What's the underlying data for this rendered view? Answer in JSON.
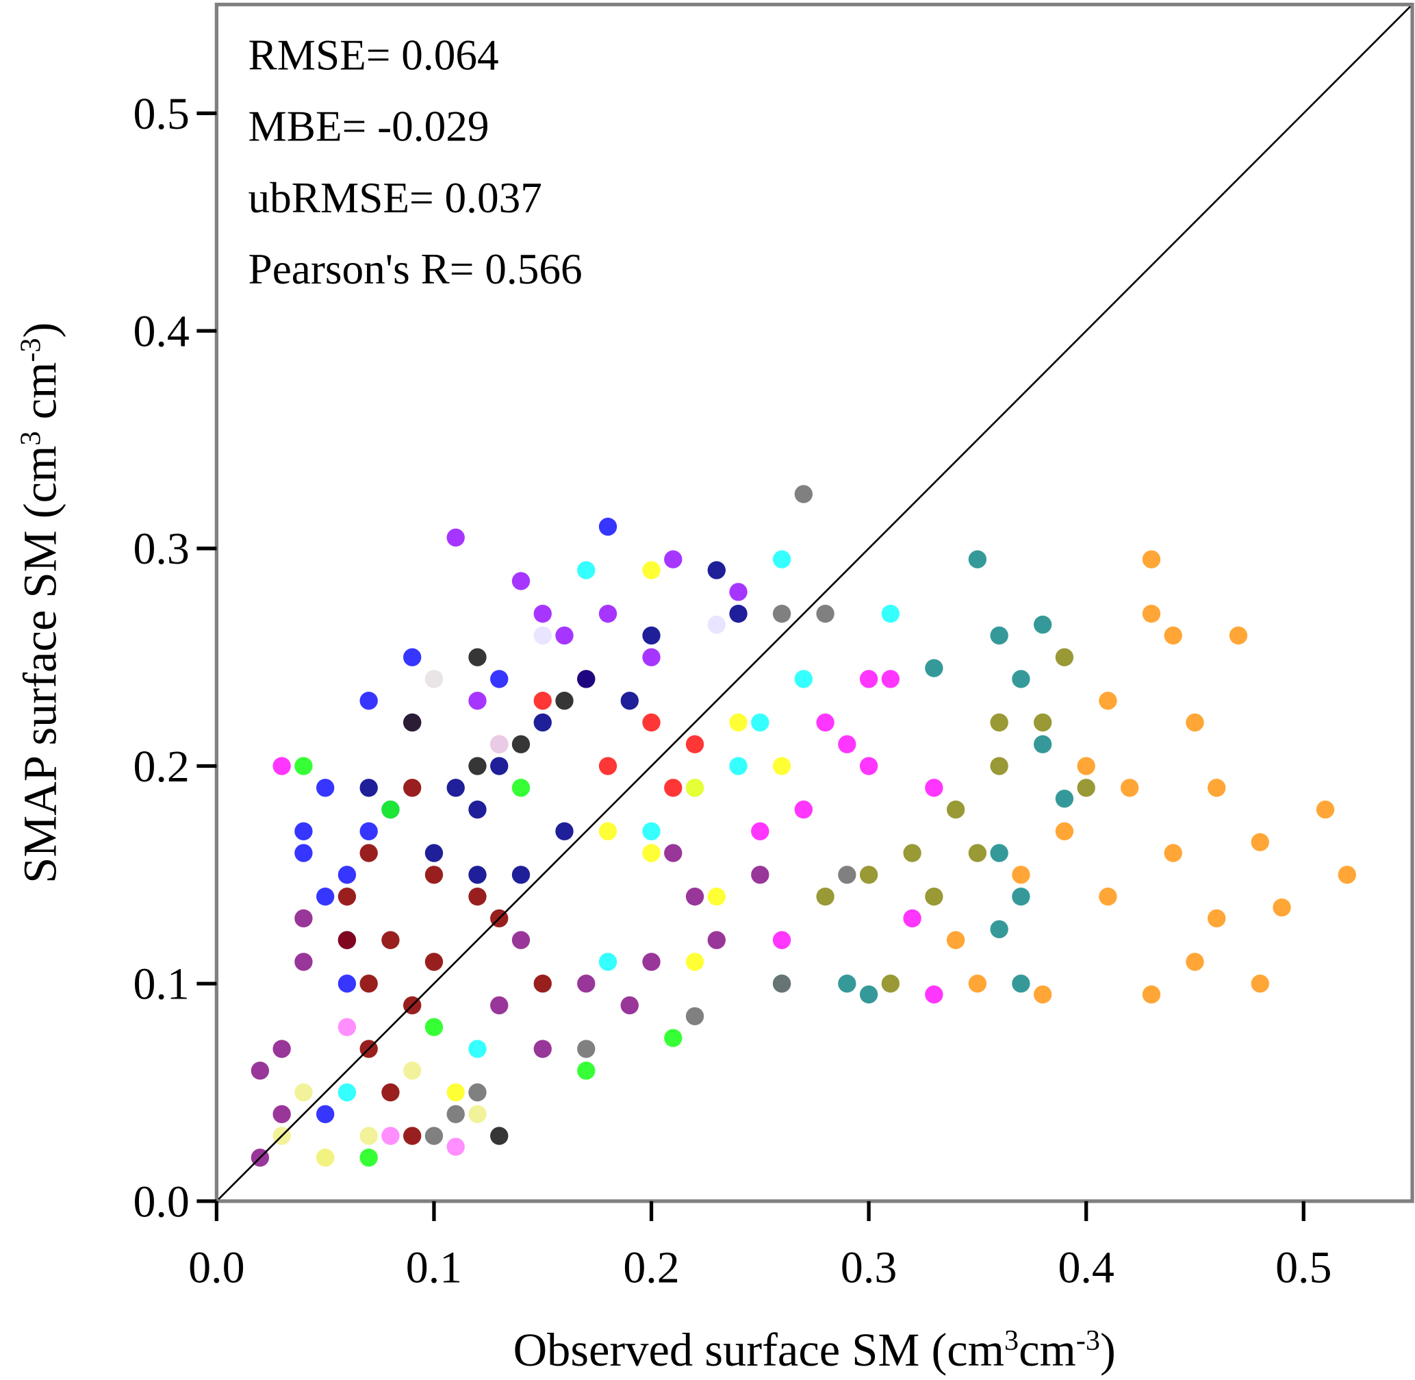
{
  "chart_data": {
    "type": "scatter",
    "annotations": [
      "RMSE= 0.064",
      "MBE= -0.029",
      "ubRMSE= 0.037",
      "Pearson's R= 0.566"
    ],
    "xlabel": [
      "Observed surface SM (cm",
      "3",
      "cm",
      "-3",
      ")"
    ],
    "ylabel": [
      "SMAP surface SM (cm",
      "3",
      " cm",
      "-3",
      ")"
    ],
    "xlim": [
      0,
      0.55
    ],
    "ylim": [
      0,
      0.55
    ],
    "xticks": [
      {
        "value": 0,
        "label": "0.0"
      },
      0.1,
      0.2,
      0.3,
      0.4,
      0.5
    ],
    "yticks": [
      {
        "value": 0,
        "label": "0.0"
      },
      0.1,
      0.2,
      0.3,
      0.4,
      0.5
    ],
    "identity_line": true,
    "series": [
      {
        "color": "#ff9a1a",
        "x": [
          0.43,
          0.43,
          0.44,
          0.47,
          0.41,
          0.45,
          0.4,
          0.42,
          0.46,
          0.51,
          0.39,
          0.44,
          0.48,
          0.52,
          0.37,
          0.41,
          0.46,
          0.49,
          0.35,
          0.38,
          0.43,
          0.48,
          0.34,
          0.45
        ],
        "y": [
          0.295,
          0.27,
          0.26,
          0.26,
          0.23,
          0.22,
          0.2,
          0.19,
          0.19,
          0.18,
          0.17,
          0.16,
          0.165,
          0.15,
          0.15,
          0.14,
          0.13,
          0.135,
          0.1,
          0.095,
          0.095,
          0.1,
          0.12,
          0.11
        ]
      },
      {
        "color": "#1a8b8b",
        "x": [
          0.35,
          0.38,
          0.36,
          0.37,
          0.38,
          0.39,
          0.36,
          0.37,
          0.36,
          0.37,
          0.3,
          0.29,
          0.33,
          0.26
        ],
        "y": [
          0.295,
          0.265,
          0.26,
          0.24,
          0.21,
          0.185,
          0.16,
          0.14,
          0.125,
          0.1,
          0.095,
          0.1,
          0.245,
          0.1
        ]
      },
      {
        "color": "#8b8b1a",
        "x": [
          0.39,
          0.38,
          0.36,
          0.34,
          0.32,
          0.35,
          0.3,
          0.28,
          0.33,
          0.31,
          0.36,
          0.4
        ],
        "y": [
          0.25,
          0.22,
          0.2,
          0.18,
          0.16,
          0.16,
          0.15,
          0.14,
          0.14,
          0.1,
          0.22,
          0.19
        ]
      },
      {
        "color": "#ff1aff",
        "x": [
          0.29,
          0.31,
          0.28,
          0.33,
          0.3,
          0.27,
          0.25,
          0.32,
          0.26,
          0.33,
          0.3,
          0.03
        ],
        "y": [
          0.21,
          0.24,
          0.22,
          0.19,
          0.2,
          0.18,
          0.17,
          0.13,
          0.12,
          0.095,
          0.24,
          0.2
        ]
      },
      {
        "color": "#1affff",
        "x": [
          0.26,
          0.31,
          0.27,
          0.25,
          0.22,
          0.2,
          0.18,
          0.12,
          0.06,
          0.17,
          0.24
        ],
        "y": [
          0.295,
          0.27,
          0.24,
          0.22,
          0.19,
          0.17,
          0.11,
          0.07,
          0.05,
          0.29,
          0.2
        ]
      },
      {
        "color": "#ffff1a",
        "x": [
          0.2,
          0.24,
          0.22,
          0.2,
          0.23,
          0.22,
          0.1,
          0.05,
          0.11,
          0.18,
          0.26
        ],
        "y": [
          0.29,
          0.22,
          0.19,
          0.16,
          0.14,
          0.11,
          0.24,
          0.02,
          0.05,
          0.17,
          0.2
        ]
      },
      {
        "color": "#ff1a1a",
        "x": [
          0.17,
          0.2,
          0.22,
          0.15,
          0.13,
          0.18,
          0.21
        ],
        "y": [
          0.24,
          0.22,
          0.21,
          0.23,
          0.21,
          0.2,
          0.19
        ]
      },
      {
        "color": "#9a1aff",
        "x": [
          0.11,
          0.14,
          0.21,
          0.18,
          0.16,
          0.2,
          0.12,
          0.24,
          0.09,
          0.15
        ],
        "y": [
          0.305,
          0.285,
          0.295,
          0.27,
          0.26,
          0.25,
          0.23,
          0.28,
          0.22,
          0.27
        ]
      },
      {
        "color": "#1a1aff",
        "x": [
          0.09,
          0.07,
          0.05,
          0.04,
          0.05,
          0.06,
          0.06,
          0.08,
          0.07,
          0.18,
          0.13,
          0.05,
          0.04,
          0.06
        ],
        "y": [
          0.25,
          0.23,
          0.19,
          0.16,
          0.14,
          0.12,
          0.1,
          0.18,
          0.17,
          0.31,
          0.24,
          0.04,
          0.17,
          0.15
        ]
      },
      {
        "color": "#00008b",
        "x": [
          0.23,
          0.24,
          0.2,
          0.17,
          0.15,
          0.13,
          0.12,
          0.1,
          0.16,
          0.14,
          0.19,
          0.12,
          0.07,
          0.11
        ],
        "y": [
          0.29,
          0.27,
          0.26,
          0.24,
          0.22,
          0.2,
          0.18,
          0.16,
          0.17,
          0.15,
          0.23,
          0.15,
          0.19,
          0.19
        ]
      },
      {
        "color": "#8b0000",
        "x": [
          0.07,
          0.06,
          0.08,
          0.07,
          0.09,
          0.07,
          0.08,
          0.09,
          0.06,
          0.1,
          0.12,
          0.13,
          0.09,
          0.1,
          0.15
        ],
        "y": [
          0.16,
          0.14,
          0.12,
          0.1,
          0.09,
          0.07,
          0.05,
          0.03,
          0.12,
          0.11,
          0.14,
          0.13,
          0.19,
          0.15,
          0.1
        ]
      },
      {
        "color": "#8b1a8b",
        "x": [
          0.02,
          0.02,
          0.03,
          0.04,
          0.04,
          0.14,
          0.17,
          0.2,
          0.22,
          0.19,
          0.23,
          0.15,
          0.13,
          0.03,
          0.21,
          0.25
        ],
        "y": [
          0.06,
          0.02,
          0.04,
          0.11,
          0.13,
          0.12,
          0.1,
          0.11,
          0.14,
          0.09,
          0.12,
          0.07,
          0.09,
          0.07,
          0.16,
          0.15
        ]
      },
      {
        "color": "#1aff1a",
        "x": [
          0.04,
          0.1,
          0.17,
          0.21,
          0.07,
          0.14,
          0.08
        ],
        "y": [
          0.2,
          0.08,
          0.06,
          0.075,
          0.02,
          0.19,
          0.18
        ]
      },
      {
        "color": "#1a1a1a",
        "x": [
          0.16,
          0.14,
          0.12,
          0.13,
          0.09,
          0.12
        ],
        "y": [
          0.23,
          0.21,
          0.2,
          0.03,
          0.22,
          0.25
        ]
      },
      {
        "color": "#6e6e6e",
        "x": [
          0.27,
          0.26,
          0.28,
          0.26,
          0.1,
          0.11,
          0.12,
          0.17,
          0.29,
          0.22
        ],
        "y": [
          0.325,
          0.27,
          0.27,
          0.1,
          0.03,
          0.04,
          0.05,
          0.07,
          0.15,
          0.085
        ]
      },
      {
        "color": "#f0f08c",
        "x": [
          0.05,
          0.03,
          0.07,
          0.12,
          0.09,
          0.04
        ],
        "y": [
          0.02,
          0.03,
          0.03,
          0.04,
          0.06,
          0.05
        ]
      },
      {
        "color": "#e6e0ff",
        "x": [
          0.1,
          0.15,
          0.23,
          0.13
        ],
        "y": [
          0.24,
          0.26,
          0.265,
          0.21
        ]
      },
      {
        "color": "#ff80ff",
        "x": [
          0.11,
          0.08,
          0.06
        ],
        "y": [
          0.025,
          0.03,
          0.08
        ]
      }
    ]
  }
}
